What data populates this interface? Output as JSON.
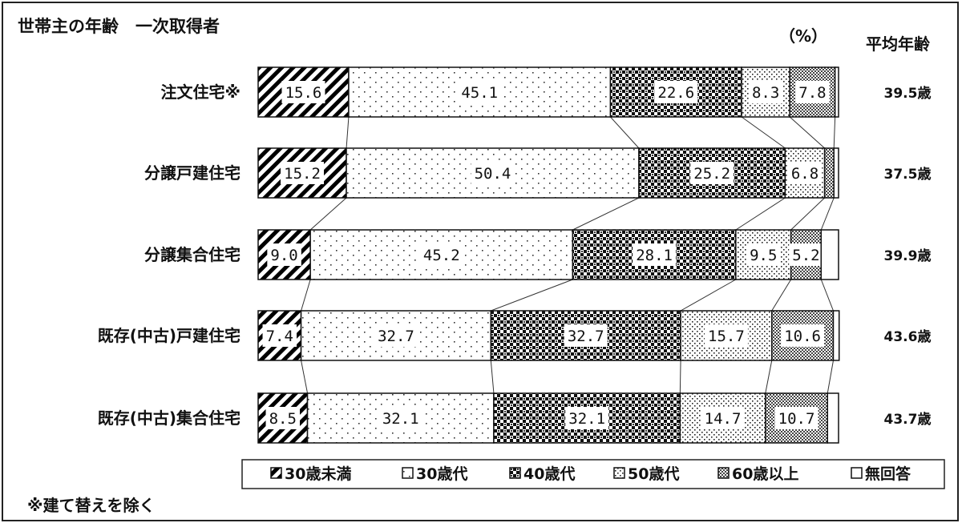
{
  "chart_data": {
    "type": "bar",
    "orientation": "horizontal-stacked-100",
    "title": "世帯主の年齢　一次取得者",
    "unit_label": "（%）",
    "average_header": "平均年齢",
    "note": "※建て替えを除く",
    "categories": [
      "注文住宅※",
      "分譲戸建住宅",
      "分譲集合住宅",
      "既存(中古)戸建住宅",
      "既存(中古)集合住宅"
    ],
    "series": [
      {
        "name": "30歳未満",
        "pattern": "diagonal",
        "values": [
          15.6,
          15.2,
          9.0,
          7.4,
          8.5
        ],
        "labels": [
          "15.6",
          "15.2",
          "9.0",
          "7.4",
          "8.5"
        ]
      },
      {
        "name": "30歳代",
        "pattern": "sparse-dots",
        "values": [
          45.1,
          50.4,
          45.2,
          32.7,
          32.1
        ],
        "labels": [
          "45.1",
          "50.4",
          "45.2",
          "32.7",
          "32.1"
        ]
      },
      {
        "name": "40歳代",
        "pattern": "dark-checker",
        "values": [
          22.6,
          25.2,
          28.1,
          32.7,
          32.1
        ],
        "labels": [
          "22.6",
          "25.2",
          "28.1",
          "32.7",
          "32.1"
        ]
      },
      {
        "name": "50歳代",
        "pattern": "dense-dots",
        "values": [
          8.3,
          6.8,
          9.5,
          15.7,
          14.7
        ],
        "labels": [
          "8.3",
          "6.8",
          "9.5",
          "15.7",
          "14.7"
        ]
      },
      {
        "name": "60歳以上",
        "pattern": "fine-checker",
        "values": [
          7.8,
          1.6,
          5.2,
          10.6,
          10.7
        ],
        "labels": [
          "7.8",
          "",
          "5.2",
          "10.6",
          "10.7"
        ]
      },
      {
        "name": "無回答",
        "pattern": "white",
        "values": [
          0.6,
          0.8,
          3.0,
          1.0,
          1.9
        ],
        "labels": [
          "",
          "",
          "",
          "",
          ""
        ]
      }
    ],
    "averages": [
      "39.5歳",
      "37.5歳",
      "39.9歳",
      "43.6歳",
      "43.7歳"
    ],
    "xlim": [
      0,
      100
    ],
    "legend_position": "bottom"
  }
}
